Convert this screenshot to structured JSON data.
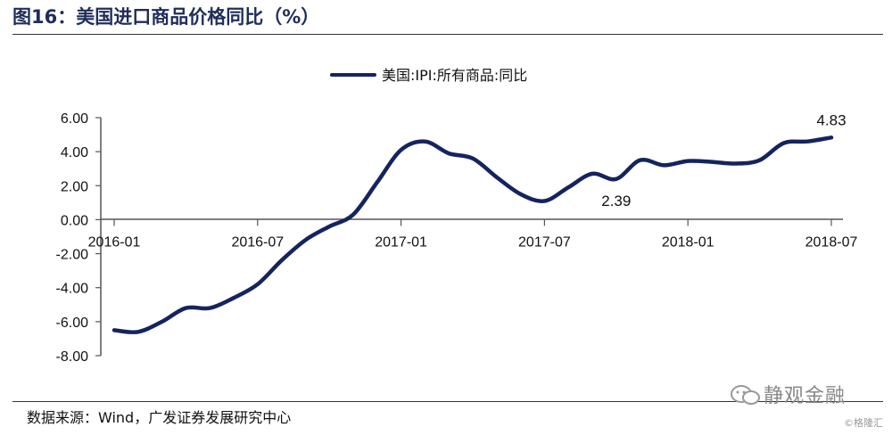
{
  "figure": {
    "title": "图16：美国进口商品价格同比（%）",
    "source": "数据来源：Wind，广发证券发展研究中心",
    "watermark": "静观金融",
    "corner_mark": "©格隆汇"
  },
  "colors": {
    "series": "#14245f",
    "axis": "#555555",
    "title": "#1f2d5a"
  },
  "chart_data": {
    "type": "line",
    "title": "",
    "xlabel": "",
    "ylabel": "",
    "ylim": [
      -8,
      6
    ],
    "yticks": [
      "6.00",
      "4.00",
      "2.00",
      "0.00",
      "-2.00",
      "-4.00",
      "-6.00",
      "-8.00"
    ],
    "x": [
      "2016-01",
      "2016-02",
      "2016-03",
      "2016-04",
      "2016-05",
      "2016-06",
      "2016-07",
      "2016-08",
      "2016-09",
      "2016-10",
      "2016-11",
      "2016-12",
      "2017-01",
      "2017-02",
      "2017-03",
      "2017-04",
      "2017-05",
      "2017-06",
      "2017-07",
      "2017-08",
      "2017-09",
      "2017-10",
      "2017-11",
      "2017-12",
      "2018-01",
      "2018-02",
      "2018-03",
      "2018-04",
      "2018-05",
      "2018-06",
      "2018-07"
    ],
    "xtick_labels": [
      "2016-01",
      "2016-07",
      "2017-01",
      "2017-07",
      "2018-01",
      "2018-07"
    ],
    "grid": false,
    "legend_position": "top-center",
    "series": [
      {
        "name": "美国:IPI:所有商品:同比",
        "values": [
          -6.5,
          -6.6,
          -6.0,
          -5.2,
          -5.2,
          -4.6,
          -3.8,
          -2.4,
          -1.2,
          -0.4,
          0.3,
          2.2,
          4.1,
          4.6,
          3.9,
          3.6,
          2.5,
          1.5,
          1.1,
          1.9,
          2.7,
          2.39,
          3.5,
          3.2,
          3.45,
          3.4,
          3.3,
          3.5,
          4.5,
          4.6,
          4.83
        ]
      }
    ],
    "annotations": [
      {
        "x": "2017-10",
        "text": "2.39"
      },
      {
        "x": "2018-07",
        "text": "4.83"
      }
    ]
  }
}
